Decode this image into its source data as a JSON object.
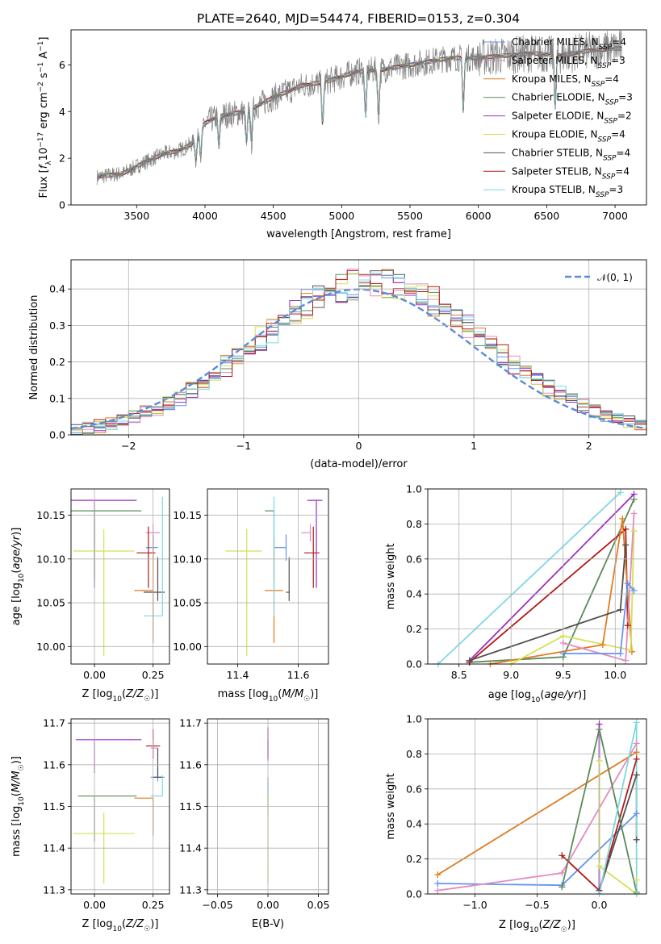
{
  "figure_title": "PLATE=2640, MJD=54474, FIBERID=0153, z=0.304",
  "colors": {
    "Chabrier MILES": "#6495ed",
    "Salpeter MILES": "#e48bbf",
    "Kroupa MILES": "#e07b20",
    "Chabrier ELODIE": "#5a8a5a",
    "Salpeter ELODIE": "#9b30c0",
    "Kroupa ELODIE": "#d4e157",
    "Chabrier STELIB": "#505050",
    "Salpeter STELIB": "#b01818",
    "Kroupa STELIB": "#7fd8e0",
    "data": "#808080"
  },
  "chart_data": [
    {
      "id": "spectrum",
      "type": "line",
      "title": "PLATE=2640, MJD=54474, FIBERID=0153, z=0.304",
      "xlabel": "wavelength [Angstrom, rest frame]",
      "ylabel": "Flux [f_λ 10^-17 erg cm^-2 s^-1 A^-1]",
      "xlim": [
        3020,
        7230
      ],
      "ylim": [
        0,
        7.5
      ],
      "xticks": [
        3500,
        4000,
        4500,
        5000,
        5500,
        6000,
        6500,
        7000
      ],
      "yticks": [
        0,
        2,
        4,
        6
      ],
      "legend_position": "top-right",
      "legend": [
        {
          "name": "Chabrier MILES",
          "nssp": "4"
        },
        {
          "name": "Salpeter MILES",
          "nssp": "3"
        },
        {
          "name": "Kroupa MILES",
          "nssp": "4"
        },
        {
          "name": "Chabrier ELODIE",
          "nssp": "3"
        },
        {
          "name": "Salpeter ELODIE",
          "nssp": "2"
        },
        {
          "name": "Kroupa ELODIE",
          "nssp": "4"
        },
        {
          "name": "Chabrier STELIB",
          "nssp": "4"
        },
        {
          "name": "Salpeter STELIB",
          "nssp": "4"
        },
        {
          "name": "Kroupa STELIB",
          "nssp": "3"
        }
      ],
      "continuum": [
        [
          3210,
          1.2
        ],
        [
          3400,
          1.35
        ],
        [
          3550,
          1.8
        ],
        [
          3700,
          2.2
        ],
        [
          3800,
          2.3
        ],
        [
          3900,
          2.6
        ],
        [
          4000,
          3.5
        ],
        [
          4100,
          3.8
        ],
        [
          4300,
          4.0
        ],
        [
          4500,
          4.6
        ],
        [
          4700,
          5.1
        ],
        [
          4900,
          5.3
        ],
        [
          5100,
          5.7
        ],
        [
          5300,
          5.8
        ],
        [
          5500,
          6.0
        ],
        [
          5800,
          6.3
        ],
        [
          6000,
          6.3
        ],
        [
          6200,
          6.4
        ],
        [
          6400,
          6.5
        ],
        [
          6600,
          6.4
        ],
        [
          6800,
          6.6
        ],
        [
          7000,
          6.7
        ],
        [
          7050,
          6.7
        ]
      ]
    },
    {
      "id": "residuals",
      "type": "histogram",
      "xlabel": "(data-model)/error",
      "ylabel": "Normed distribution",
      "xlim": [
        -2.5,
        2.5
      ],
      "ylim": [
        0,
        0.48
      ],
      "xticks": [
        -2,
        -1,
        0,
        1,
        2
      ],
      "yticks": [
        0.0,
        0.1,
        0.2,
        0.3,
        0.4
      ],
      "grid": true,
      "bin_width": 0.1,
      "legend_position": "top-right",
      "reference_curve": {
        "name": "N(0,1)",
        "mean": 0,
        "sigma": 1
      }
    },
    {
      "id": "age_vs_Z",
      "type": "scatter",
      "xlabel": "Z [log10(Z/Z☉)]",
      "ylabel": "age [log10(age/yr)]",
      "xlim": [
        -0.1,
        0.32
      ],
      "ylim": [
        9.98,
        10.18
      ],
      "xticks": [
        0.0,
        0.25
      ],
      "yticks": [
        10.0,
        10.05,
        10.1,
        10.15
      ],
      "grid": true,
      "points": [
        {
          "series": "Salpeter ELODIE",
          "x": 0.0,
          "xerr": [
            0.1,
            0.18
          ],
          "y": 10.167,
          "yerr": [
            0.1,
            0.0
          ]
        },
        {
          "series": "Chabrier ELODIE",
          "x": 0.0,
          "xerr": [
            0.1,
            0.2
          ],
          "y": 10.155,
          "yerr": [
            0.08,
            0.0
          ]
        },
        {
          "series": "Kroupa ELODIE",
          "x": 0.04,
          "xerr": [
            0.13,
            0.13
          ],
          "y": 10.109,
          "yerr": [
            0.12,
            0.025
          ]
        },
        {
          "series": "Salpeter MILES",
          "x": 0.25,
          "xerr": [
            0.03,
            0.03
          ],
          "y": 10.13,
          "yerr": [
            0.01,
            0.01
          ]
        },
        {
          "series": "Chabrier MILES",
          "x": 0.25,
          "xerr": [
            0.03,
            0.02
          ],
          "y": 10.113,
          "yerr": [
            0.015,
            0.015
          ]
        },
        {
          "series": "Salpeter STELIB",
          "x": 0.23,
          "xerr": [
            0.05,
            0.03
          ],
          "y": 10.107,
          "yerr": [
            0.04,
            0.03
          ]
        },
        {
          "series": "Kroupa MILES",
          "x": 0.25,
          "xerr": [
            0.08,
            0.0
          ],
          "y": 10.064,
          "yerr": [
            0.06,
            0.06
          ]
        },
        {
          "series": "Chabrier STELIB",
          "x": 0.27,
          "xerr": [
            0.06,
            0.03
          ],
          "y": 10.062,
          "yerr": [
            0.01,
            0.04
          ]
        },
        {
          "series": "Kroupa STELIB",
          "x": 0.29,
          "xerr": [
            0.08,
            0.0
          ],
          "y": 10.035,
          "yerr": [
            0.0,
            0.136
          ]
        }
      ]
    },
    {
      "id": "age_vs_mass",
      "type": "scatter",
      "xlabel": "mass [log10(M/M☉)]",
      "ylabel": "",
      "xlim": [
        11.3,
        11.7
      ],
      "ylim": [
        9.98,
        10.18
      ],
      "xticks": [
        11.4,
        11.6
      ],
      "yticks": [
        10.0,
        10.05,
        10.1,
        10.15
      ],
      "grid": true,
      "points": [
        {
          "series": "Salpeter ELODIE",
          "x": 11.66,
          "xerr": [
            0.03,
            0.02
          ],
          "y": 10.167,
          "yerr": [
            0.1,
            0.0
          ]
        },
        {
          "series": "Chabrier ELODIE",
          "x": 11.52,
          "xerr": [
            0.03,
            0.0
          ],
          "y": 10.155,
          "yerr": [
            0.08,
            0.0
          ]
        },
        {
          "series": "Kroupa ELODIE",
          "x": 11.43,
          "xerr": [
            0.07,
            0.05
          ],
          "y": 10.109,
          "yerr": [
            0.12,
            0.025
          ]
        },
        {
          "series": "Salpeter MILES",
          "x": 11.64,
          "xerr": [
            0.03,
            0.0
          ],
          "y": 10.13,
          "yerr": [
            0.01,
            0.01
          ]
        },
        {
          "series": "Chabrier MILES",
          "x": 11.56,
          "xerr": [
            0.04,
            0.0
          ],
          "y": 10.113,
          "yerr": [
            0.015,
            0.015
          ]
        },
        {
          "series": "Salpeter STELIB",
          "x": 11.65,
          "xerr": [
            0.03,
            0.02
          ],
          "y": 10.107,
          "yerr": [
            0.04,
            0.03
          ]
        },
        {
          "series": "Kroupa MILES",
          "x": 11.52,
          "xerr": [
            0.03,
            0.03
          ],
          "y": 10.064,
          "yerr": [
            0.06,
            0.06
          ]
        },
        {
          "series": "Chabrier STELIB",
          "x": 11.57,
          "xerr": [
            0.01,
            0.0
          ],
          "y": 10.062,
          "yerr": [
            0.01,
            0.04
          ]
        },
        {
          "series": "Kroupa STELIB",
          "x": 11.52,
          "xerr": [
            0.0,
            0.0
          ],
          "y": 10.035,
          "yerr": [
            0.0,
            0.136
          ]
        }
      ]
    },
    {
      "id": "weight_vs_age",
      "type": "line",
      "xlabel": "age [log10(age/yr)]",
      "ylabel": "mass weight",
      "xlim": [
        8.2,
        10.3
      ],
      "ylim": [
        0,
        1.0
      ],
      "xticks": [
        8.5,
        9.0,
        9.5,
        10.0
      ],
      "yticks": [
        0.0,
        0.2,
        0.4,
        0.6,
        0.8,
        1.0
      ],
      "grid": true,
      "series": [
        {
          "name": "Kroupa STELIB",
          "x": [
            8.3,
            10.05
          ],
          "y": [
            0.0,
            0.98
          ]
        },
        {
          "name": "Salpeter ELODIE",
          "x": [
            8.6,
            10.18
          ],
          "y": [
            0.02,
            0.97
          ]
        },
        {
          "name": "Chabrier ELODIE",
          "x": [
            8.6,
            9.5,
            10.18
          ],
          "y": [
            0.01,
            0.04,
            0.94
          ]
        },
        {
          "name": "Salpeter STELIB",
          "x": [
            8.6,
            10.1,
            10.12
          ],
          "y": [
            0.01,
            0.77,
            0.22
          ]
        },
        {
          "name": "Kroupa MILES",
          "x": [
            8.8,
            9.88,
            10.07,
            10.16
          ],
          "y": [
            0.0,
            0.11,
            0.83,
            0.07
          ]
        },
        {
          "name": "Chabrier STELIB",
          "x": [
            8.6,
            10.05,
            10.1
          ],
          "y": [
            0.02,
            0.31,
            0.68
          ]
        },
        {
          "name": "Kroupa ELODIE",
          "x": [
            9.0,
            9.5,
            10.15,
            10.18
          ],
          "y": [
            0.0,
            0.16,
            0.08,
            0.76
          ]
        },
        {
          "name": "Salpeter MILES",
          "x": [
            9.5,
            10.1,
            10.18
          ],
          "y": [
            0.12,
            0.02,
            0.86
          ]
        },
        {
          "name": "Chabrier MILES",
          "x": [
            9.5,
            10.05,
            10.12,
            10.18
          ],
          "y": [
            0.06,
            0.06,
            0.46,
            0.42
          ]
        }
      ]
    },
    {
      "id": "mass_vs_Z",
      "type": "scatter",
      "xlabel": "Z [log10(Z/Z☉)]",
      "ylabel": "mass [log10(M/M☉)]",
      "xlim": [
        -0.1,
        0.32
      ],
      "ylim": [
        11.29,
        11.71
      ],
      "xticks": [
        0.0,
        0.25
      ],
      "yticks": [
        11.3,
        11.4,
        11.5,
        11.6,
        11.7
      ],
      "grid": true,
      "points": [
        {
          "series": "Salpeter ELODIE",
          "x": 0.0,
          "xerr": [
            0.08,
            0.2
          ],
          "y": 11.66,
          "yerr": [
            0.08,
            0.0
          ]
        },
        {
          "series": "Salpeter STELIB",
          "x": 0.25,
          "xerr": [
            0.03,
            0.03
          ],
          "y": 11.645,
          "yerr": [
            0.03,
            0.04
          ]
        },
        {
          "series": "Salpeter MILES",
          "x": 0.25,
          "xerr": [
            0.01,
            0.02
          ],
          "y": 11.64,
          "yerr": [
            0.02,
            0.02
          ]
        },
        {
          "series": "Chabrier MILES",
          "x": 0.27,
          "xerr": [
            0.03,
            0.03
          ],
          "y": 11.57,
          "yerr": [
            0.01,
            0.02
          ]
        },
        {
          "series": "Chabrier STELIB",
          "x": 0.27,
          "xerr": [
            0.02,
            0.02
          ],
          "y": 11.57,
          "yerr": [
            0.0,
            0.07
          ]
        },
        {
          "series": "Chabrier ELODIE",
          "x": 0.0,
          "xerr": [
            0.07,
            0.18
          ],
          "y": 11.525,
          "yerr": [
            0.11,
            0.0
          ]
        },
        {
          "series": "Kroupa MILES",
          "x": 0.25,
          "xerr": [
            0.08,
            0.0
          ],
          "y": 11.52,
          "yerr": [
            0.09,
            0.0
          ]
        },
        {
          "series": "Kroupa STELIB",
          "x": 0.29,
          "xerr": [
            0.05,
            0.0
          ],
          "y": 11.525,
          "yerr": [
            0.0,
            0.05
          ]
        },
        {
          "series": "Kroupa ELODIE",
          "x": 0.04,
          "xerr": [
            0.13,
            0.13
          ],
          "y": 11.435,
          "yerr": [
            0.12,
            0.05
          ]
        }
      ]
    },
    {
      "id": "mass_vs_EBV",
      "type": "scatter",
      "xlabel": "E(B-V)",
      "ylabel": "",
      "xlim": [
        -0.06,
        0.06
      ],
      "ylim": [
        11.29,
        11.71
      ],
      "xticks": [
        -0.05,
        0.0,
        0.05
      ],
      "yticks": [
        11.3,
        11.4,
        11.5,
        11.6,
        11.7
      ],
      "grid": true,
      "points": [
        {
          "series": "Salpeter STELIB",
          "x": 0.0,
          "y": 11.645,
          "yerr": [
            0.03,
            0.045
          ]
        },
        {
          "series": "Salpeter ELODIE",
          "x": 0.0,
          "y": 11.66,
          "yerr": [
            0.05,
            0.0
          ]
        },
        {
          "series": "Chabrier MILES",
          "x": 0.0,
          "y": 11.57,
          "yerr": [
            0.07,
            0.0
          ]
        },
        {
          "series": "Kroupa STELIB",
          "x": 0.0,
          "y": 11.525,
          "yerr": [
            0.05,
            0.0
          ]
        },
        {
          "series": "Kroupa ELODIE",
          "x": 0.0,
          "y": 11.435,
          "yerr": [
            0.12,
            0.1
          ]
        }
      ]
    },
    {
      "id": "weight_vs_Z",
      "type": "line",
      "xlabel": "Z [log10(Z/Z☉)]",
      "ylabel": "mass weight",
      "xlim": [
        -1.38,
        0.38
      ],
      "ylim": [
        0,
        1.0
      ],
      "xticks": [
        -1.0,
        -0.5,
        0.0
      ],
      "yticks": [
        0.0,
        0.2,
        0.4,
        0.6,
        0.8,
        1.0
      ],
      "grid": true,
      "series": [
        {
          "name": "Kroupa MILES",
          "x": [
            -1.3,
            0.3
          ],
          "y": [
            0.11,
            0.81
          ]
        },
        {
          "name": "Chabrier MILES",
          "x": [
            -1.3,
            -0.3,
            0.3
          ],
          "y": [
            0.06,
            0.05,
            0.46
          ]
        },
        {
          "name": "Salpeter MILES",
          "x": [
            -1.3,
            -0.3,
            0.3
          ],
          "y": [
            0.02,
            0.12,
            0.86
          ]
        },
        {
          "name": "Salpeter STELIB",
          "x": [
            -0.3,
            0.0,
            0.3
          ],
          "y": [
            0.22,
            0.02,
            0.77
          ]
        },
        {
          "name": "Chabrier ELODIE",
          "x": [
            -0.3,
            0.0,
            0.3
          ],
          "y": [
            0.04,
            0.94,
            0.01
          ]
        },
        {
          "name": "Salpeter ELODIE",
          "x": [
            0.0,
            0.0
          ],
          "y": [
            0.02,
            0.97
          ]
        },
        {
          "name": "Kroupa ELODIE",
          "x": [
            0.0,
            0.0,
            0.3,
            0.3
          ],
          "y": [
            0.76,
            0.16,
            0.0,
            0.08
          ]
        },
        {
          "name": "Chabrier STELIB",
          "x": [
            0.0,
            0.3,
            0.3
          ],
          "y": [
            0.02,
            0.68,
            0.31
          ]
        },
        {
          "name": "Kroupa STELIB",
          "x": [
            0.0,
            0.3,
            0.3
          ],
          "y": [
            0.0,
            0.98,
            0.0
          ]
        }
      ]
    }
  ]
}
